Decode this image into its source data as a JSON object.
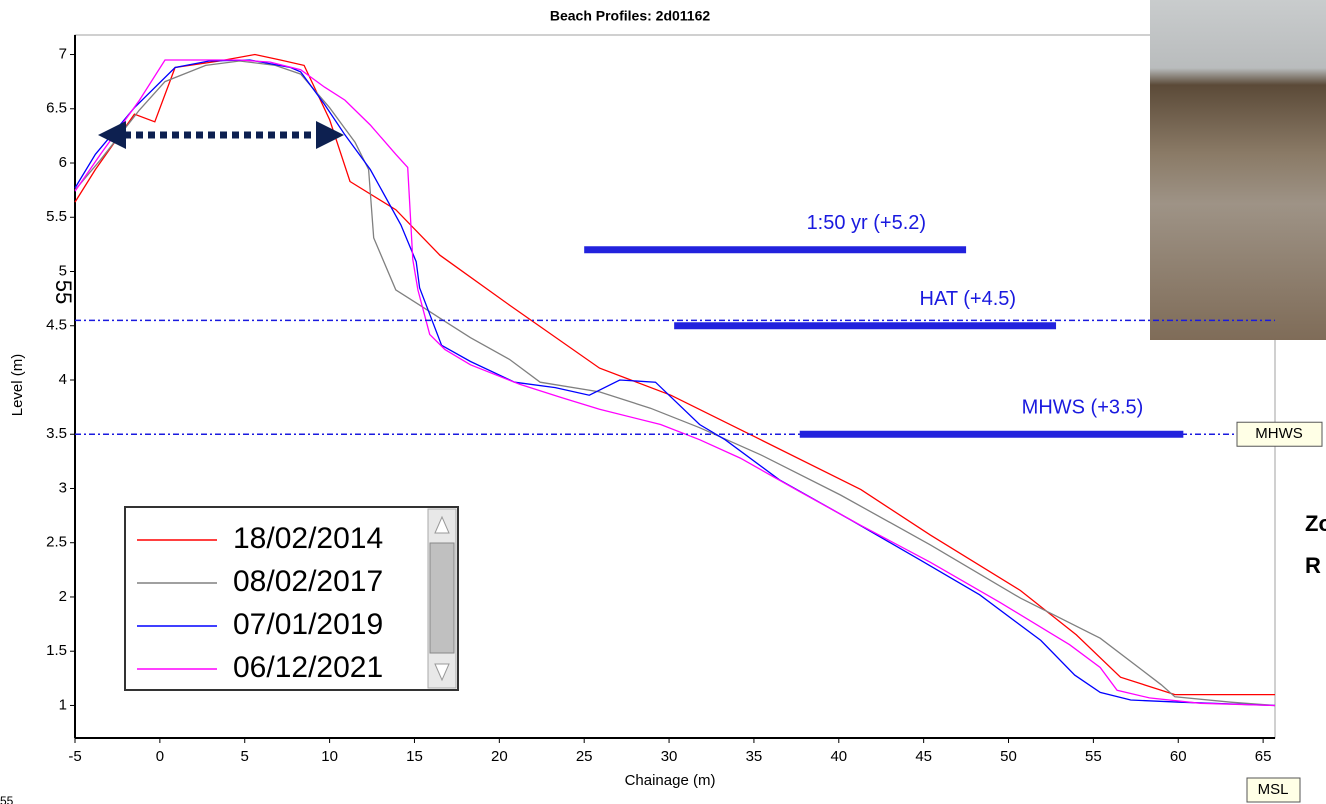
{
  "chart_data": {
    "type": "line",
    "title": "Beach Profiles: 2d01162",
    "x_label": "Chainage (m)",
    "y_label": "Level (m)",
    "xlim": [
      -5,
      65.7
    ],
    "ylim": [
      0.7,
      7.18
    ],
    "xticks": [
      -5,
      0,
      5,
      10,
      15,
      20,
      25,
      30,
      35,
      40,
      45,
      50,
      55,
      60,
      65
    ],
    "yticks": [
      1,
      1.5,
      2,
      2.5,
      3,
      3.5,
      4,
      4.5,
      5,
      5.5,
      6,
      6.5,
      7
    ],
    "grid": false,
    "series": [
      {
        "name": "18/02/2014",
        "color": "#ff0000",
        "x": [
          -5,
          -3.8,
          -1.5,
          -0.3,
          0.9,
          3.5,
          5.6,
          7.1,
          8.5,
          10,
          11.2,
          13.9,
          16.5,
          20.6,
          25.9,
          30.1,
          35.4,
          41.3,
          45.4,
          50.7,
          54,
          56.6,
          59.8,
          63.1,
          65.7
        ],
        "values": [
          5.64,
          5.94,
          6.45,
          6.38,
          6.88,
          6.94,
          7.0,
          6.95,
          6.9,
          6.4,
          5.83,
          5.57,
          5.15,
          4.69,
          4.11,
          3.86,
          3.45,
          2.99,
          2.57,
          2.06,
          1.65,
          1.26,
          1.1,
          1.1,
          1.1
        ]
      },
      {
        "name": "08/02/2017",
        "color": "#808080",
        "x": [
          -5,
          -3.5,
          -1.2,
          0.3,
          2.7,
          4.7,
          6.8,
          8.3,
          10,
          11.5,
          12.3,
          12.6,
          13.9,
          15.3,
          16.8,
          18.3,
          20.6,
          22.4,
          25.9,
          28.9,
          31.8,
          35.4,
          40.1,
          45.4,
          50.7,
          55.4,
          59,
          59.8,
          63.1,
          65.7
        ],
        "values": [
          5.75,
          6.03,
          6.49,
          6.75,
          6.9,
          6.94,
          6.9,
          6.82,
          6.51,
          6.19,
          5.94,
          5.31,
          4.83,
          4.69,
          4.54,
          4.39,
          4.19,
          3.98,
          3.89,
          3.74,
          3.56,
          3.31,
          2.94,
          2.48,
          1.99,
          1.62,
          1.19,
          1.08,
          1.03,
          1.0
        ]
      },
      {
        "name": "07/01/2019",
        "color": "#0000ff",
        "x": [
          -5,
          -3.8,
          -1.5,
          0.9,
          2.9,
          5.3,
          7.7,
          8.3,
          9.7,
          10.9,
          12.4,
          14.2,
          15.1,
          15.3,
          16.6,
          18.3,
          20.9,
          23.3,
          25.3,
          27.1,
          29.2,
          31.8,
          33.3,
          36.5,
          40.7,
          44.8,
          48.3,
          51.9,
          53.9,
          55.4,
          57.2,
          60.1,
          65.7
        ],
        "values": [
          5.77,
          6.08,
          6.51,
          6.88,
          6.94,
          6.95,
          6.88,
          6.84,
          6.54,
          6.26,
          5.94,
          5.43,
          5.09,
          4.85,
          4.32,
          4.17,
          3.98,
          3.93,
          3.86,
          4.0,
          3.98,
          3.59,
          3.45,
          3.08,
          2.71,
          2.34,
          2.02,
          1.6,
          1.28,
          1.12,
          1.05,
          1.03,
          1.0
        ]
      },
      {
        "name": "06/12/2021",
        "color": "#ff00ff",
        "x": [
          -5,
          -3.5,
          -1.2,
          0.3,
          2.4,
          4.7,
          6.5,
          8.3,
          9.7,
          10.9,
          12.4,
          13.9,
          14.6,
          14.9,
          15.2,
          15.9,
          16.8,
          18.3,
          21.2,
          23.6,
          25.9,
          29.5,
          31.8,
          34.2,
          37.7,
          41.3,
          45.4,
          49.5,
          53.6,
          55.4,
          56.4,
          58.3,
          61.3,
          65.7
        ],
        "values": [
          5.74,
          6.08,
          6.58,
          6.95,
          6.95,
          6.95,
          6.93,
          6.86,
          6.7,
          6.58,
          6.35,
          6.08,
          5.96,
          5.11,
          4.83,
          4.42,
          4.28,
          4.14,
          3.96,
          3.84,
          3.73,
          3.59,
          3.45,
          3.28,
          2.97,
          2.66,
          2.32,
          1.95,
          1.56,
          1.35,
          1.14,
          1.07,
          1.02,
          1.0
        ]
      }
    ],
    "reference_lines": [
      {
        "y": 4.55
      },
      {
        "y": 3.5,
        "label": "MHWS"
      }
    ],
    "annotations": [
      {
        "text": "1:50 yr (+5.2)",
        "y": 5.2,
        "x": [
          25,
          47.5
        ]
      },
      {
        "text": "HAT (+4.5)",
        "y": 4.5,
        "x": [
          30.3,
          52.8
        ]
      },
      {
        "text": "MHWS (+3.5)",
        "y": 3.5,
        "x": [
          37.7,
          60.3
        ]
      }
    ],
    "footer_label": "MSL",
    "overlay_texts": [
      "55",
      "55",
      "Zo",
      "R"
    ]
  }
}
